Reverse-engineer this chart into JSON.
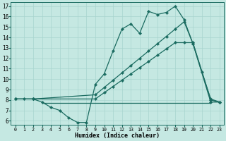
{
  "xlabel": "Humidex (Indice chaleur)",
  "bg_color": "#c5e8e2",
  "line_color": "#1a6b60",
  "grid_color": "#a8d4ce",
  "xlim_min": -0.5,
  "xlim_max": 23.5,
  "ylim_min": 5.6,
  "ylim_max": 17.4,
  "xticks": [
    0,
    1,
    2,
    3,
    4,
    5,
    6,
    7,
    8,
    9,
    10,
    11,
    12,
    13,
    14,
    15,
    16,
    17,
    18,
    19,
    20,
    21,
    22,
    23
  ],
  "yticks": [
    6,
    7,
    8,
    9,
    10,
    11,
    12,
    13,
    14,
    15,
    16,
    17
  ],
  "series": [
    {
      "x": [
        0,
        1,
        2,
        3,
        4,
        5,
        6,
        7,
        8,
        9,
        10,
        11,
        12,
        13,
        14,
        15,
        16,
        17,
        18,
        19,
        20,
        21,
        22,
        23
      ],
      "y": [
        8.1,
        8.1,
        8.1,
        7.8,
        7.3,
        7.0,
        6.3,
        5.85,
        5.85,
        9.5,
        10.5,
        12.7,
        14.8,
        15.3,
        14.4,
        16.5,
        16.2,
        16.4,
        17.0,
        15.7,
        13.4,
        10.7,
        8.1,
        7.8
      ]
    },
    {
      "x": [
        0,
        2,
        9,
        10,
        11,
        12,
        13,
        14,
        15,
        16,
        17,
        18,
        19,
        20,
        22,
        23
      ],
      "y": [
        8.1,
        8.1,
        8.5,
        9.2,
        9.9,
        10.6,
        11.3,
        12.0,
        12.7,
        13.4,
        14.1,
        14.8,
        15.5,
        13.4,
        7.8,
        7.8
      ]
    },
    {
      "x": [
        0,
        2,
        9,
        10,
        11,
        12,
        13,
        14,
        15,
        16,
        17,
        18,
        19,
        20,
        22,
        23
      ],
      "y": [
        8.1,
        8.1,
        8.1,
        8.7,
        9.3,
        9.9,
        10.5,
        11.1,
        11.7,
        12.3,
        12.9,
        13.5,
        13.5,
        13.5,
        8.0,
        7.8
      ]
    },
    {
      "x": [
        3,
        8,
        9,
        10,
        11,
        12,
        13,
        14,
        15,
        16,
        17,
        18,
        19,
        20,
        21,
        22
      ],
      "y": [
        7.7,
        7.7,
        7.7,
        7.7,
        7.7,
        7.7,
        7.7,
        7.7,
        7.7,
        7.7,
        7.7,
        7.7,
        7.7,
        7.7,
        7.7,
        7.7
      ]
    }
  ]
}
